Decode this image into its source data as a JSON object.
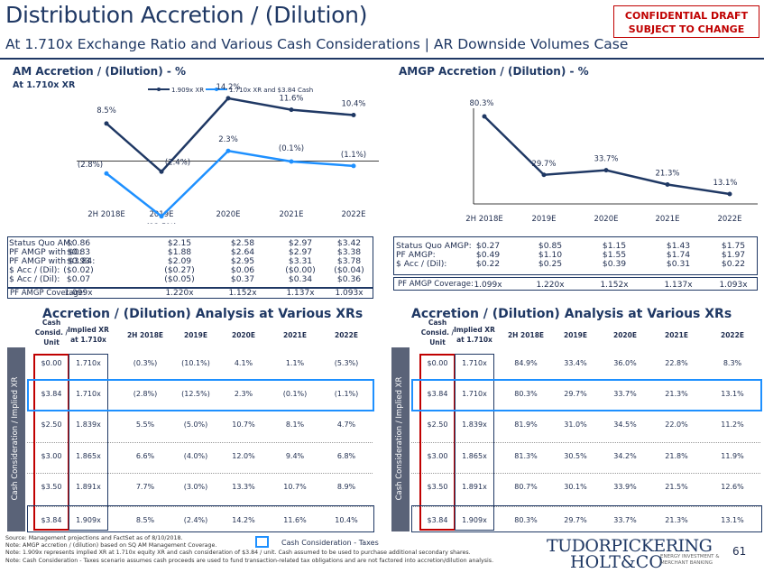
{
  "header": {
    "title": "Distribution Accretion / (Dilution)",
    "subtitle": "At 1.710x Exchange Ratio and Various Cash Considerations | AR Downside Volumes Case",
    "confidential_line1": "CONFIDENTIAL DRAFT",
    "confidential_line2": "SUBJECT TO CHANGE"
  },
  "left_chart": {
    "title": "AM Accretion / (Dilution) - %",
    "subtitle": "At 1.710x XR",
    "legend": [
      "1.909x XR",
      "1.710x XR and $3.84 Cash"
    ]
  },
  "right_chart": {
    "title": "AMGP Accretion / (Dilution) - %"
  },
  "chart_data": [
    {
      "type": "line",
      "title": "AM Accretion / (Dilution) - %",
      "categories": [
        "2H 2018E",
        "2019E",
        "2020E",
        "2021E",
        "2022E"
      ],
      "series": [
        {
          "name": "1.909x XR",
          "values": [
            8.5,
            -2.4,
            14.2,
            11.6,
            10.4
          ],
          "labels": [
            "8.5%",
            "(2.4%)",
            "14.2%",
            "11.6%",
            "10.4%"
          ],
          "color": "#1F3864"
        },
        {
          "name": "1.710x XR and $3.84 Cash",
          "values": [
            -2.8,
            -12.5,
            2.3,
            -0.1,
            -1.1
          ],
          "labels": [
            "(2.8%)",
            "(12.5%)",
            "2.3%",
            "(0.1%)",
            "(1.1%)"
          ],
          "color": "#1E90FF"
        }
      ]
    },
    {
      "type": "line",
      "title": "AMGP Accretion / (Dilution) - %",
      "categories": [
        "2H 2018E",
        "2019E",
        "2020E",
        "2021E",
        "2022E"
      ],
      "series": [
        {
          "values": [
            80.3,
            29.7,
            33.7,
            21.3,
            13.1
          ],
          "labels": [
            "80.3%",
            "29.7%",
            "33.7%",
            "21.3%",
            "13.1%"
          ],
          "color": "#1F3864"
        }
      ]
    }
  ],
  "left_stats": {
    "labels": [
      "Status Quo AM:",
      "PF AMGP with $0:",
      "PF AMGP with $3.84:",
      "$ Acc / (Dil):",
      "$ Acc / (Dil):"
    ],
    "cols": [
      [
        "$0.86",
        "$0.83",
        "$0.93",
        "($0.02)",
        "$0.07"
      ],
      [
        "$2.15",
        "$1.88",
        "$2.09",
        "($0.27)",
        "($0.05)"
      ],
      [
        "$2.58",
        "$2.64",
        "$2.95",
        "$0.06",
        "$0.37"
      ],
      [
        "$2.97",
        "$2.97",
        "$3.31",
        "($0.00)",
        "$0.34"
      ],
      [
        "$3.42",
        "$3.38",
        "$3.78",
        "($0.04)",
        "$0.36"
      ]
    ],
    "coverage_label": "PF AMGP Coverage:",
    "coverage": [
      "1.099x",
      "1.220x",
      "1.152x",
      "1.137x",
      "1.093x"
    ]
  },
  "right_stats": {
    "labels": [
      "Status Quo AMGP:",
      "PF AMGP:",
      "$ Acc / (Dil):"
    ],
    "cols": [
      [
        "$0.27",
        "$0.49",
        "$0.22"
      ],
      [
        "$0.85",
        "$1.10",
        "$0.25"
      ],
      [
        "$1.15",
        "$1.55",
        "$0.39"
      ],
      [
        "$1.43",
        "$1.74",
        "$0.31"
      ],
      [
        "$1.75",
        "$1.97",
        "$0.22"
      ]
    ],
    "coverage_label": "PF AMGP Coverage:",
    "coverage": [
      "1.099x",
      "1.220x",
      "1.152x",
      "1.137x",
      "1.093x"
    ]
  },
  "tables": {
    "title": "Accretion / (Dilution) Analysis at Various XRs",
    "headers": {
      "cash": [
        "Cash",
        "Consid. /",
        "Unit"
      ],
      "xr": [
        "Implied XR",
        "at 1.710x"
      ],
      "years": [
        "2H 2018E",
        "2019E",
        "2020E",
        "2021E",
        "2022E"
      ]
    },
    "side_label": "Cash Consideration / Implied XR",
    "left_rows": [
      [
        "$0.00",
        "1.710x",
        "(0.3%)",
        "(10.1%)",
        "4.1%",
        "1.1%",
        "(5.3%)"
      ],
      [
        "$3.84",
        "1.710x",
        "(2.8%)",
        "(12.5%)",
        "2.3%",
        "(0.1%)",
        "(1.1%)"
      ],
      [
        "$2.50",
        "1.839x",
        "5.5%",
        "(5.0%)",
        "10.7%",
        "8.1%",
        "4.7%"
      ],
      [
        "$3.00",
        "1.865x",
        "6.6%",
        "(4.0%)",
        "12.0%",
        "9.4%",
        "6.8%"
      ],
      [
        "$3.50",
        "1.891x",
        "7.7%",
        "(3.0%)",
        "13.3%",
        "10.7%",
        "8.9%"
      ],
      [
        "$3.84",
        "1.909x",
        "8.5%",
        "(2.4%)",
        "14.2%",
        "11.6%",
        "10.4%"
      ]
    ],
    "right_rows": [
      [
        "$0.00",
        "1.710x",
        "84.9%",
        "33.4%",
        "36.0%",
        "22.8%",
        "8.3%"
      ],
      [
        "$3.84",
        "1.710x",
        "80.3%",
        "29.7%",
        "33.7%",
        "21.3%",
        "13.1%"
      ],
      [
        "$2.50",
        "1.839x",
        "81.9%",
        "31.0%",
        "34.5%",
        "22.0%",
        "11.2%"
      ],
      [
        "$3.00",
        "1.865x",
        "81.3%",
        "30.5%",
        "34.2%",
        "21.8%",
        "11.9%"
      ],
      [
        "$3.50",
        "1.891x",
        "80.7%",
        "30.1%",
        "33.9%",
        "21.5%",
        "12.6%"
      ],
      [
        "$3.84",
        "1.909x",
        "80.3%",
        "29.7%",
        "33.7%",
        "21.3%",
        "13.1%"
      ]
    ]
  },
  "footer": {
    "notes": [
      "Source: Management projections and FactSet as of 8/10/2018.",
      "Note: AMGP accretion / (dilution) based on SQ AM Management Coverage.",
      "Note: 1.909x represents implied XR at 1.710x equity XR and cash consideration of $3.84 / unit. Cash assumed to be used to purchase additional secondary shares.",
      "Note: Cash Consideration - Taxes scenario assumes cash proceeds are used to fund transaction-related tax obligations and are not factored into accretion/dilution analysis."
    ],
    "legend_label": "Cash Consideration - Taxes",
    "logo_line1": "TUDORPICKERING",
    "logo_line2": "HOLT&CO",
    "logo_sub1": "ENERGY INVESTMENT &",
    "logo_sub2": "MERCHANT BANKING",
    "page_number": "61"
  },
  "colors": {
    "navy": "#1F3864",
    "blue": "#1E90FF",
    "red": "#C00000",
    "gray_band": "#5A6378"
  }
}
